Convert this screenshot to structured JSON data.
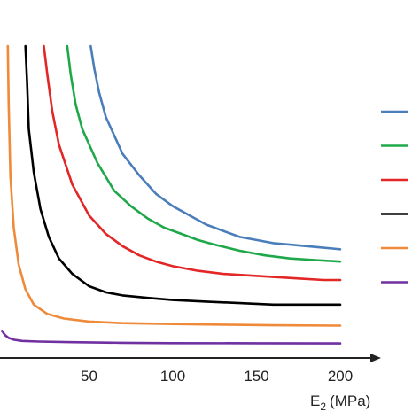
{
  "chart_data": {
    "type": "line",
    "xlabel": "E",
    "xlabel_sub": "2",
    "xlabel_unit": "(MPa)",
    "x_ticks": [
      "50",
      "100",
      "150",
      "200"
    ],
    "x_tick_values": [
      50,
      100,
      150,
      200
    ],
    "xlim": [
      -3,
      220
    ],
    "grid": false,
    "legend_position": "right",
    "series": [
      {
        "color": "#4a7ebb",
        "x": [
          51,
          53,
          56,
          60,
          70,
          80,
          90,
          100,
          110,
          120,
          130,
          140,
          150,
          160,
          170,
          180,
          190,
          200
        ],
        "y": [
          97,
          90,
          82,
          74,
          62,
          55,
          49,
          45,
          42,
          39,
          37,
          35,
          34,
          33,
          32.5,
          32,
          31.5,
          31
        ]
      },
      {
        "color": "#1fa84a",
        "x": [
          37,
          39,
          42,
          46,
          55,
          65,
          75,
          85,
          95,
          105,
          115,
          125,
          140,
          155,
          170,
          185,
          200
        ],
        "y": [
          97,
          88,
          78,
          70,
          59,
          50,
          45,
          41,
          38,
          36,
          34,
          32.5,
          30.5,
          29,
          28,
          27.5,
          27
        ]
      },
      {
        "color": "#e32626",
        "x": [
          23,
          25,
          28,
          32,
          40,
          50,
          60,
          70,
          80,
          90,
          100,
          115,
          130,
          145,
          160,
          175,
          190,
          200
        ],
        "y": [
          97,
          88,
          76,
          65,
          52,
          42,
          36,
          32,
          29,
          27,
          25.5,
          24,
          23,
          22.5,
          22,
          21.5,
          21,
          21
        ]
      },
      {
        "color": "#000000",
        "x": [
          12,
          13,
          14,
          17,
          21,
          26,
          32,
          40,
          50,
          60,
          70,
          85,
          100,
          120,
          140,
          160,
          180,
          200
        ],
        "y": [
          97,
          85,
          70,
          56,
          44,
          35,
          28,
          23,
          19,
          17,
          16,
          15.2,
          14.5,
          14,
          13.5,
          13,
          13,
          13
        ]
      },
      {
        "color": "#ee8a3a",
        "x": [
          1.5,
          2,
          3,
          5,
          8,
          12,
          17,
          25,
          35,
          50,
          70,
          100,
          130,
          160,
          200
        ],
        "y": [
          97,
          78,
          55,
          38,
          26,
          18,
          13,
          10,
          8.5,
          7.5,
          7,
          6.7,
          6.5,
          6.3,
          6.2
        ]
      },
      {
        "color": "#7030a0",
        "x": [
          -2,
          0,
          2,
          5,
          10,
          20,
          40,
          70,
          100,
          150,
          200
        ],
        "y": [
          4.5,
          3,
          2.2,
          1.6,
          1.2,
          1,
          0.8,
          0.6,
          0.5,
          0.45,
          0.4
        ]
      }
    ],
    "legend_colors": [
      "#4a7ebb",
      "#1fa84a",
      "#e32626",
      "#000000",
      "#ee8a3a",
      "#7030a0"
    ]
  }
}
